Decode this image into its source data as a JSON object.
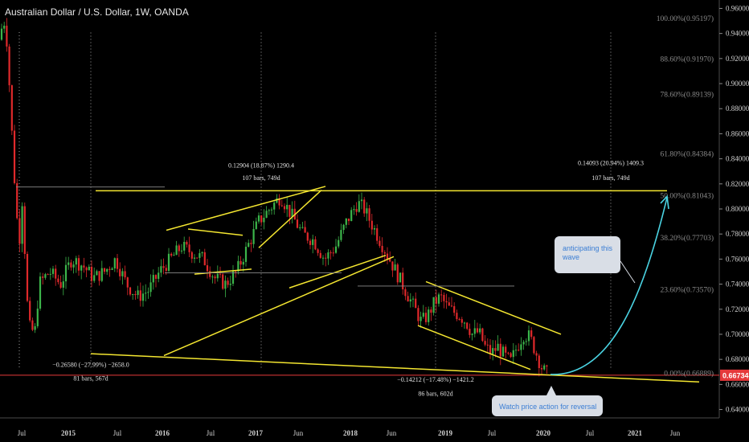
{
  "header": {
    "title": "Australian Dollar / U.S. Dollar, 1W, OANDA"
  },
  "chart_data": {
    "type": "candlestick",
    "title": "Australian Dollar / U.S. Dollar, 1W, OANDA",
    "ylim": [
      0.6333,
      0.9667
    ],
    "y_ticks": [
      "0.96000",
      "0.94000",
      "0.92000",
      "0.90000",
      "0.88000",
      "0.86000",
      "0.84000",
      "0.82000",
      "0.80000",
      "0.78000",
      "0.76000",
      "0.74000",
      "0.72000",
      "0.70000",
      "0.68000",
      "0.66000",
      "0.64000"
    ],
    "x_ticks": [
      "Jul",
      "2015",
      "Jul",
      "2016",
      "Jul",
      "2017",
      "Jun",
      "2018",
      "Jun",
      "2019",
      "Jul",
      "2020",
      "Jul",
      "2021",
      "Jun"
    ],
    "current_price": "0.66734",
    "fib_levels": [
      {
        "label": "100.00%(0.95197)",
        "value": 0.95197
      },
      {
        "label": "88.60%(0.91970)",
        "value": 0.9197
      },
      {
        "label": "78.60%(0.89139)",
        "value": 0.89139
      },
      {
        "label": "61.80%(0.84384)",
        "value": 0.84384
      },
      {
        "label": "50.00%(0.81043)",
        "value": 0.81043
      },
      {
        "label": "38.20%(0.77703)",
        "value": 0.77703
      },
      {
        "label": "23.60%(0.73570)",
        "value": 0.7357
      },
      {
        "label": "0.00%(0.66889)",
        "value": 0.66889
      }
    ],
    "measurements": [
      {
        "line1": "0.12904 (18.87%) 1290.4",
        "line2": "107 bars, 749d"
      },
      {
        "line1": "0.14093 (20.94%) 1409.3",
        "line2": "107 bars, 749d"
      },
      {
        "line1": "−0.26580 (−27.99%) −2658.0",
        "line2": "81 bars, 567d"
      },
      {
        "line1": "−0.14212 (−17.48%) −1421.2",
        "line2": "86 bars, 602d"
      }
    ],
    "annotations": [
      {
        "text": "anticipating this wave"
      },
      {
        "text": "Watch price action for reversal"
      }
    ],
    "price_path": [
      [
        0.935,
        0.945,
        0.94,
        0.95,
        0.945,
        0.935,
        0.93,
        0.9,
        0.87,
        0.86,
        0.85,
        0.82,
        0.8,
        0.79,
        0.785,
        0.775,
        0.8,
        0.81,
        0.78,
        0.76,
        0.73,
        0.72,
        0.71,
        0.7,
        0.705,
        0.7,
        0.71,
        0.69,
        0.72,
        0.74
      ],
      [
        0.76,
        0.75,
        0.74,
        0.76,
        0.755,
        0.745,
        0.75,
        0.76,
        0.74,
        0.73,
        0.735,
        0.75,
        0.76,
        0.77,
        0.765,
        0.76,
        0.745,
        0.74,
        0.75,
        0.77,
        0.79,
        0.8,
        0.81,
        0.795,
        0.78,
        0.775,
        0.76,
        0.77,
        0.79,
        0.805
      ],
      [
        0.81,
        0.8,
        0.79,
        0.78,
        0.77,
        0.76,
        0.75,
        0.74,
        0.73,
        0.72,
        0.71,
        0.715,
        0.725,
        0.73,
        0.722,
        0.718,
        0.715,
        0.71,
        0.7,
        0.702,
        0.69,
        0.685,
        0.69,
        0.683,
        0.678,
        0.69,
        0.7,
        0.698,
        0.685,
        0.672,
        0.667
      ]
    ]
  }
}
